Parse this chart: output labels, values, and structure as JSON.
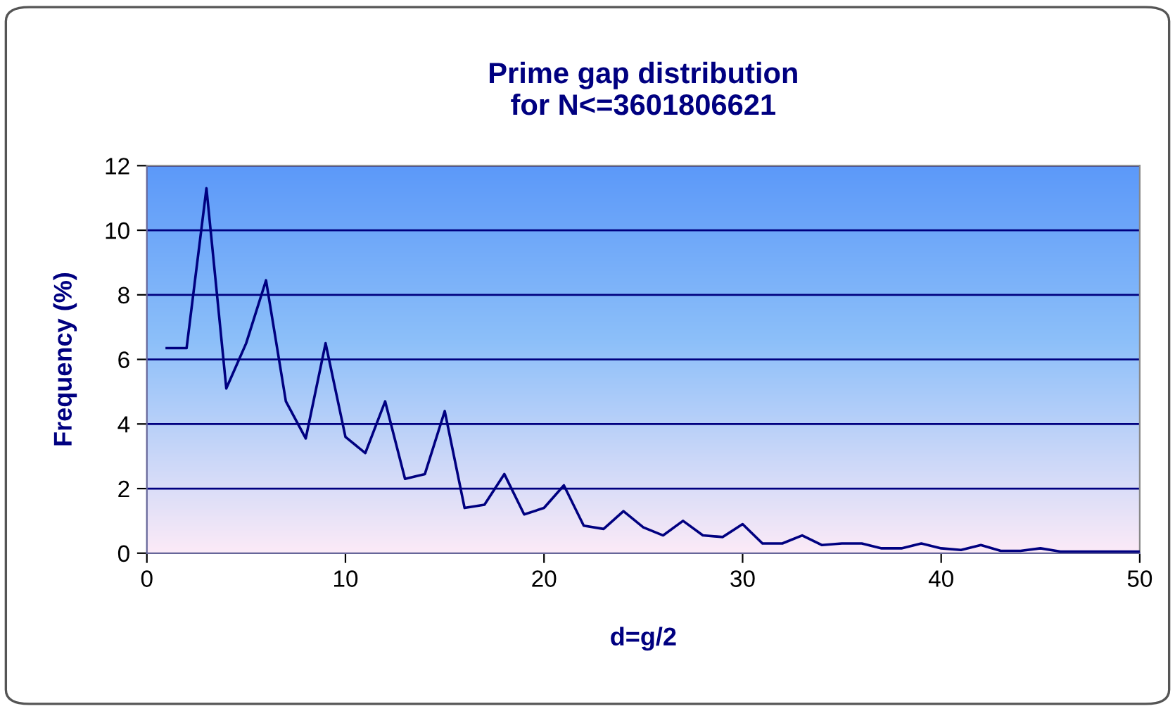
{
  "chart_data": {
    "type": "line",
    "title": "Prime gap distribution\nfor N<=3601806621",
    "xlabel": "d=g/2",
    "ylabel": "Frequency (%)",
    "x": [
      1,
      2,
      3,
      4,
      5,
      6,
      7,
      8,
      9,
      10,
      11,
      12,
      13,
      14,
      15,
      16,
      17,
      18,
      19,
      20,
      21,
      22,
      23,
      24,
      25,
      26,
      27,
      28,
      29,
      30,
      31,
      32,
      33,
      34,
      35,
      36,
      37,
      38,
      39,
      40,
      41,
      42,
      43,
      44,
      45,
      46,
      47,
      48,
      49,
      50
    ],
    "series": [
      {
        "color": "#000080",
        "values": [
          6.35,
          6.35,
          11.3,
          5.1,
          6.5,
          8.45,
          4.7,
          3.55,
          6.5,
          3.6,
          3.1,
          4.7,
          2.3,
          2.45,
          4.4,
          1.4,
          1.5,
          2.45,
          1.2,
          1.4,
          2.1,
          0.85,
          0.75,
          1.3,
          0.8,
          0.55,
          1.0,
          0.55,
          0.5,
          0.9,
          0.3,
          0.3,
          0.55,
          0.25,
          0.3,
          0.3,
          0.15,
          0.15,
          0.3,
          0.15,
          0.1,
          0.25,
          0.07,
          0.07,
          0.15,
          0.05,
          0.05,
          0.05,
          0.05,
          0.05
        ]
      }
    ],
    "xlim": [
      0,
      50
    ],
    "xticks": [
      0,
      10,
      20,
      30,
      40,
      50
    ],
    "ylim": [
      0,
      12
    ],
    "yticks": [
      0,
      2,
      4,
      6,
      8,
      10,
      12
    ],
    "grid": "y",
    "marker": "none",
    "line_style": "solid"
  }
}
